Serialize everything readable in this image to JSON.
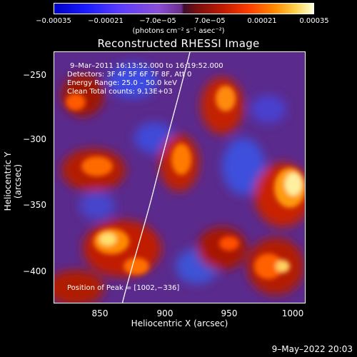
{
  "colorbar": {
    "ticks": [
      "−0.00035",
      "−0.00021",
      "−7.0e−05",
      "7.0e−05",
      "0.00021",
      "0.00035"
    ],
    "unit": "(photons cm⁻² s⁻¹ asec⁻²)",
    "colors": [
      "#0000c8",
      "#5a3cff",
      "#6d2f8d",
      "#c01a00",
      "#ff8a00",
      "#ffffd8"
    ]
  },
  "title": "Reconstructed RHESSI Image",
  "annotations": {
    "time_range": "9–Mar–2011 16:13:52.000 to 16:19:52.000",
    "detectors": "Detectors: 3F 4F 5F 6F 7F 8F, Att 0",
    "energy_range": "Energy Range: 25.0 – 50.0 keV",
    "clean_counts": "Clean     Total counts: 9.13E+03",
    "peak": "Position of Peak = [1002,−336]"
  },
  "axes": {
    "xlabel": "Heliocentric X (arcsec)",
    "ylabel": "Heliocentric Y (arcsec)",
    "xticks": [
      "850",
      "900",
      "950",
      "1000"
    ],
    "yticks": [
      "−250",
      "−300",
      "−350",
      "−400"
    ]
  },
  "footer": "9–May–2022 20:03"
}
